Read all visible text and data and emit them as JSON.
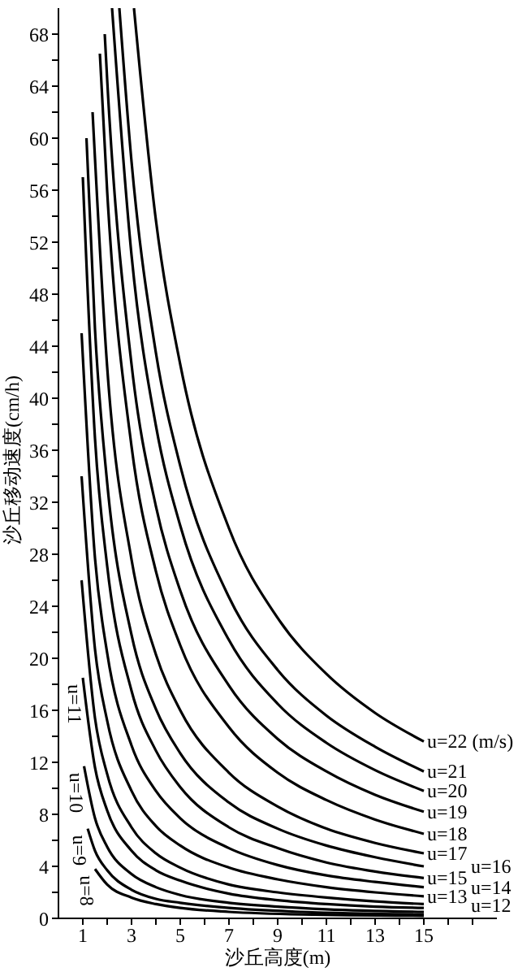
{
  "chart_data": {
    "type": "line",
    "xlabel": "沙丘高度(m)",
    "ylabel": "沙丘移动速度(cm/h)",
    "xlim": [
      0,
      18
    ],
    "xticks": [
      1,
      {
        "value": 2,
        "label": null
      },
      3,
      {
        "value": 4,
        "label": null
      },
      5,
      {
        "value": 6,
        "label": null
      },
      7,
      {
        "value": 8,
        "label": null
      },
      9,
      {
        "value": 10,
        "label": null
      },
      11,
      {
        "value": 12,
        "label": null
      },
      13,
      {
        "value": 14,
        "label": null
      },
      15,
      {
        "value": 16,
        "label": null
      },
      {
        "value": 17,
        "label": null
      }
    ],
    "ylim": [
      0,
      70
    ],
    "yticks": [
      0,
      {
        "value": 2,
        "label": null
      },
      4,
      {
        "value": 6,
        "label": null
      },
      8,
      {
        "value": 10,
        "label": null
      },
      12,
      {
        "value": 14,
        "label": null
      },
      16,
      {
        "value": 18,
        "label": null
      },
      20,
      {
        "value": 22,
        "label": null
      },
      24,
      {
        "value": 26,
        "label": null
      },
      28,
      {
        "value": 30,
        "label": null
      },
      32,
      {
        "value": 34,
        "label": null
      },
      36,
      {
        "value": 38,
        "label": null
      },
      40,
      {
        "value": 42,
        "label": null
      },
      44,
      {
        "value": 46,
        "label": null
      },
      48,
      {
        "value": 50,
        "label": null
      },
      52,
      {
        "value": 54,
        "label": null
      },
      56,
      {
        "value": 58,
        "label": null
      },
      60,
      {
        "value": 62,
        "label": null
      },
      64,
      {
        "value": 66,
        "label": null
      },
      68
    ],
    "grid": false,
    "legend": false,
    "marker": "none",
    "line_style": "solid",
    "series": [
      {
        "name": "u=8",
        "color": "#000000",
        "x": [
          1.5,
          2,
          3,
          4,
          5,
          7,
          10,
          15
        ],
        "values": [
          3.8,
          2.6,
          1.6,
          1.1,
          0.8,
          0.5,
          0.3,
          0.2
        ]
      },
      {
        "name": "u=9",
        "color": "#000000",
        "x": [
          1.2,
          1.5,
          2,
          3,
          4,
          5,
          7,
          10,
          15
        ],
        "values": [
          6.9,
          5.2,
          3.7,
          2.2,
          1.5,
          1.2,
          0.8,
          0.5,
          0.3
        ]
      },
      {
        "name": "u=10",
        "color": "#000000",
        "x": [
          1.05,
          1.5,
          2,
          3,
          4,
          5,
          7,
          9,
          11,
          15
        ],
        "values": [
          11.7,
          7.7,
          5.5,
          3.4,
          2.4,
          1.8,
          1.2,
          0.9,
          0.7,
          0.5
        ]
      },
      {
        "name": "u=11",
        "color": "#000000",
        "x": [
          1,
          1.5,
          2,
          3,
          4,
          5,
          7,
          9,
          11,
          13,
          15
        ],
        "values": [
          18.5,
          11.6,
          8.3,
          5.2,
          3.7,
          2.9,
          1.9,
          1.4,
          1.1,
          0.9,
          0.8
        ]
      },
      {
        "name": "u=12",
        "color": "#000000",
        "x": [
          0.95,
          1.5,
          2,
          3,
          4,
          5,
          7,
          9,
          11,
          13,
          15
        ],
        "values": [
          26,
          15.4,
          11.1,
          7,
          5,
          3.9,
          2.6,
          2,
          1.6,
          1.3,
          1.1
        ]
      },
      {
        "name": "u=13",
        "color": "#000000",
        "x": [
          0.95,
          1.5,
          2,
          3,
          4,
          5,
          7,
          9,
          11,
          13,
          15
        ],
        "values": [
          34,
          20.7,
          15.2,
          9.8,
          7.1,
          5.6,
          3.9,
          3,
          2.4,
          2,
          1.7
        ]
      },
      {
        "name": "u=14",
        "color": "#000000",
        "x": [
          0.95,
          1.5,
          2,
          3,
          4,
          5,
          7,
          9,
          11,
          13,
          15
        ],
        "values": [
          45,
          27.7,
          20.4,
          13.3,
          9.8,
          7.7,
          5.4,
          4.1,
          3.3,
          2.8,
          2.4
        ]
      },
      {
        "name": "u=15",
        "color": "#000000",
        "x": [
          1,
          1.5,
          2,
          3,
          4,
          5,
          7,
          9,
          11,
          13,
          15
        ],
        "values": [
          57,
          36.9,
          27.1,
          17.5,
          12.9,
          10.1,
          7,
          5.4,
          4.3,
          3.6,
          3.1
        ]
      },
      {
        "name": "u=16",
        "color": "#000000",
        "x": [
          1.15,
          1.5,
          2,
          3,
          4,
          5,
          7,
          9,
          11,
          13,
          15
        ],
        "values": [
          60,
          45.3,
          33.5,
          21.8,
          16.1,
          12.7,
          8.9,
          6.9,
          5.6,
          4.7,
          4
        ]
      },
      {
        "name": "u=17",
        "color": "#000000",
        "x": [
          1.4,
          2,
          3,
          4,
          5,
          7,
          9,
          11,
          13,
          15
        ],
        "values": [
          62,
          42.4,
          27.6,
          20.3,
          16,
          11.2,
          8.6,
          6.9,
          5.8,
          5
        ]
      },
      {
        "name": "u=18",
        "color": "#000000",
        "x": [
          1.7,
          2,
          3,
          4,
          5,
          7,
          9,
          11,
          13,
          15
        ],
        "values": [
          66.5,
          55.9,
          36.3,
          26.7,
          21,
          14.7,
          11.2,
          9.1,
          7.6,
          6.5
        ]
      },
      {
        "name": "u=19",
        "color": "#000000",
        "x": [
          1.9,
          2,
          3,
          4,
          5,
          7,
          9,
          11,
          13,
          15
        ],
        "values": [
          68,
          64.5,
          42.6,
          31.7,
          25.2,
          17.9,
          13.8,
          11.3,
          9.5,
          8.2
        ]
      },
      {
        "name": "u=20",
        "color": "#000000",
        "x": [
          2.2,
          3,
          4,
          5,
          7,
          9,
          11,
          13,
          15
        ],
        "values": [
          70,
          51,
          37.9,
          30.2,
          21.4,
          16.5,
          13.5,
          11.4,
          9.8
        ]
      },
      {
        "name": "u=21",
        "color": "#000000",
        "x": [
          2.5,
          3,
          4,
          5,
          7,
          9,
          11,
          13,
          15
        ],
        "values": [
          70,
          58.2,
          43.5,
          34.8,
          24.7,
          19.1,
          15.6,
          13.2,
          11.3
        ]
      },
      {
        "name": "u=22 (m/s)",
        "color": "#000000",
        "x": [
          3.1,
          4,
          5,
          7,
          9,
          11,
          13,
          15
        ],
        "values": [
          70,
          53.7,
          42.6,
          30,
          23.1,
          18.8,
          15.8,
          13.6
        ]
      }
    ]
  }
}
